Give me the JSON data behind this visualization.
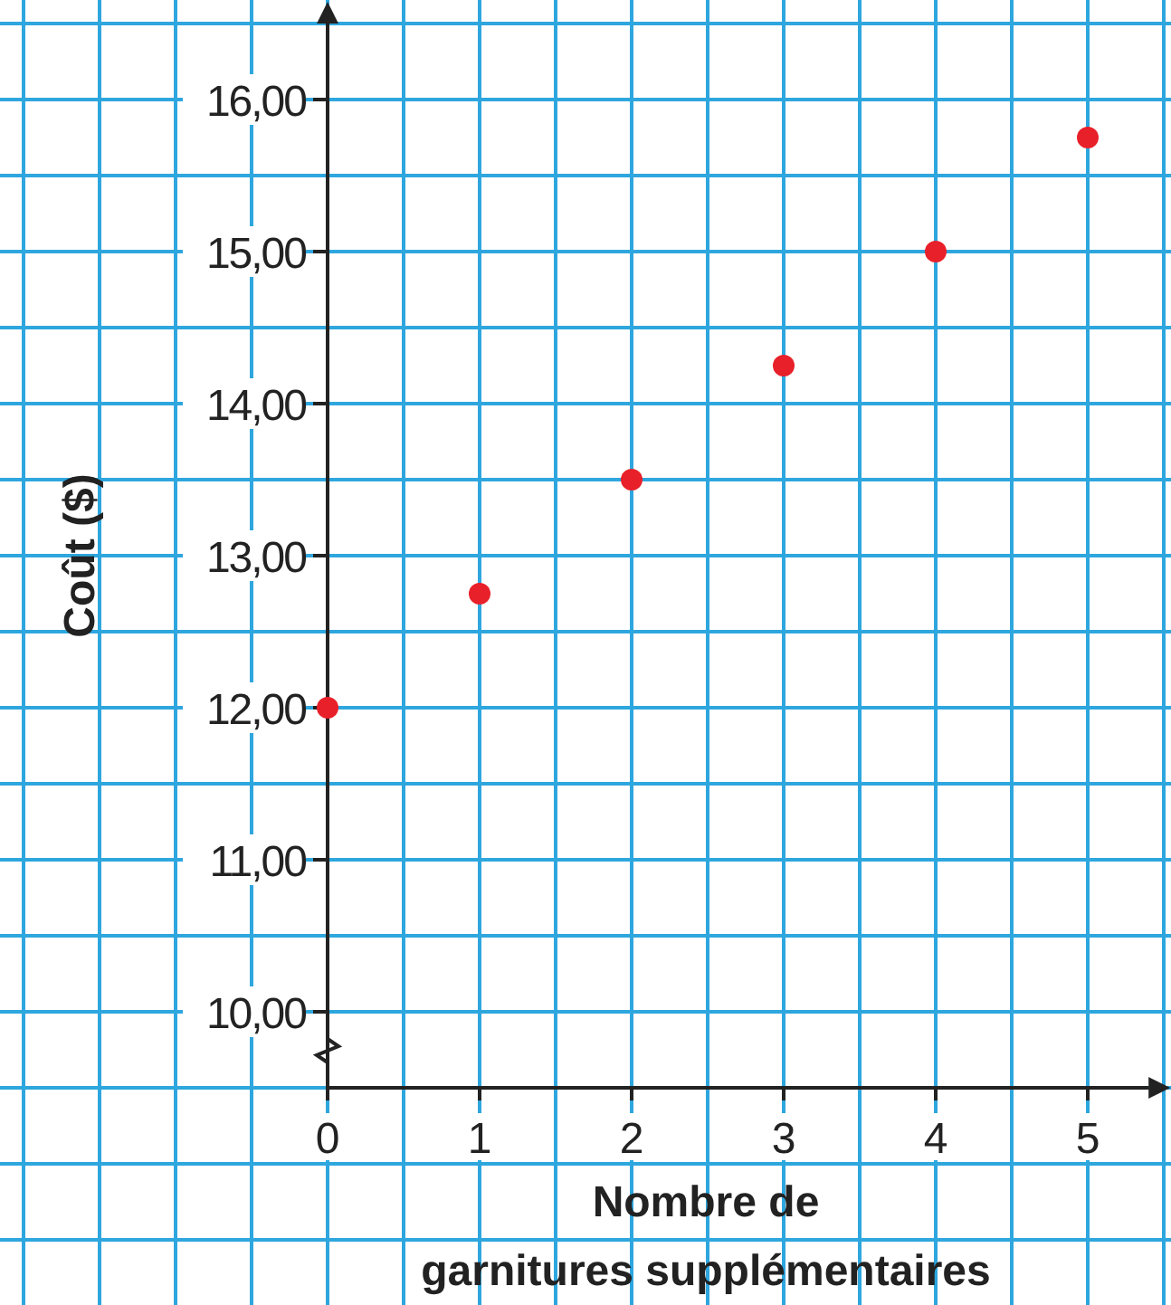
{
  "chart_data": {
    "type": "scatter",
    "xlabel": "Nombre de\ngarnitures supplémentaires",
    "ylabel": "Coût ($)",
    "x": [
      0,
      1,
      2,
      3,
      4,
      5
    ],
    "series": [
      {
        "color": "#e8202a",
        "values": [
          12,
          12.75,
          13.5,
          14.25,
          15,
          15.75
        ]
      }
    ],
    "xlim": [
      0,
      5.4
    ],
    "ylim": [
      9.5,
      16.5
    ],
    "xticks": [
      0,
      1,
      2,
      3,
      4,
      5
    ],
    "yticks": [
      {
        "value": 10,
        "label": "10,00"
      },
      {
        "value": 11,
        "label": "11,00"
      },
      {
        "value": 12,
        "label": "12,00"
      },
      {
        "value": 13,
        "label": "13,00"
      },
      {
        "value": 14,
        "label": "14,00"
      },
      {
        "value": 15,
        "label": "15,00"
      },
      {
        "value": 16,
        "label": "16,00"
      }
    ],
    "grid": true,
    "marker": "circle"
  }
}
